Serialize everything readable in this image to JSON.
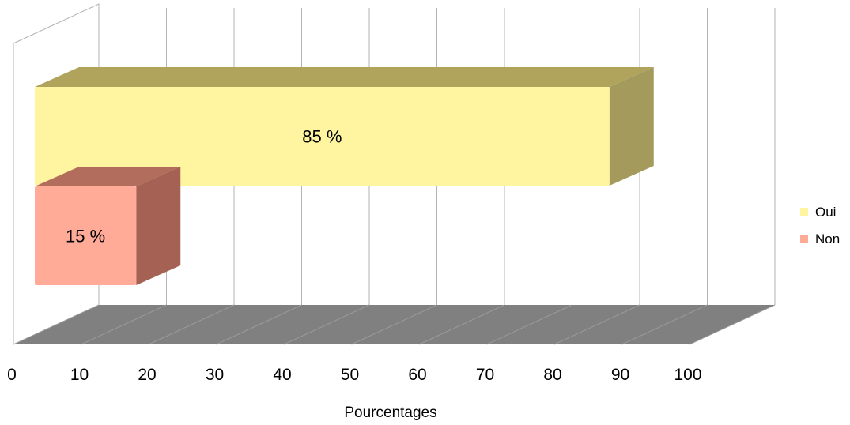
{
  "chart_data": {
    "type": "bar",
    "orientation": "horizontal",
    "style": "3d",
    "categories": [
      "Oui",
      "Non"
    ],
    "values": [
      85,
      15
    ],
    "data_labels": [
      "85 %",
      "15 %"
    ],
    "xlabel": "Pourcentages",
    "ylabel": "",
    "xlim": [
      0,
      100
    ],
    "x_ticks": [
      "0",
      "10",
      "20",
      "30",
      "40",
      "50",
      "60",
      "70",
      "80",
      "90",
      "100"
    ],
    "grid": true,
    "legend": {
      "position": "right",
      "entries": [
        {
          "label": "Oui",
          "color": "#fff5a0"
        },
        {
          "label": "Non",
          "color": "#ffab97"
        }
      ]
    },
    "colors": {
      "Oui": {
        "front": "#fff5a0",
        "top": "#b0a45d",
        "side": "#a39a5c"
      },
      "Non": {
        "front": "#ffab97",
        "top": "#b26d5d",
        "side": "#a56154"
      },
      "floor": "#808080",
      "gridlines": "#b3b3b3"
    }
  }
}
